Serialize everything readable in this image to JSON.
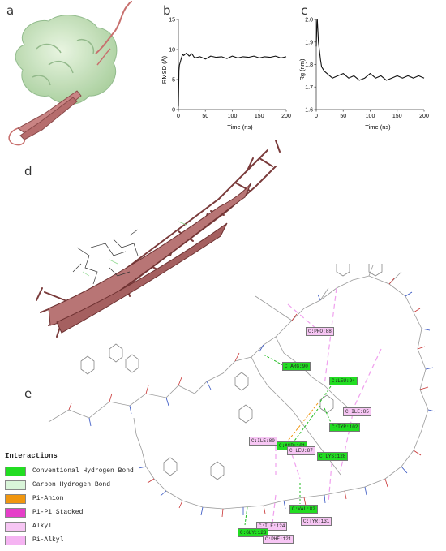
{
  "panels": {
    "a": {
      "letter": "a"
    },
    "b": {
      "letter": "b"
    },
    "c": {
      "letter": "c"
    },
    "d": {
      "letter": "d"
    },
    "e": {
      "letter": "e"
    }
  },
  "chart_data": [
    {
      "type": "line",
      "panel": "b",
      "title": "",
      "xlabel": "Time (ns)",
      "ylabel": "RMSD (Å)",
      "xlim": [
        0,
        200
      ],
      "ylim": [
        0,
        15
      ],
      "xticks": [
        "0",
        "50",
        "100",
        "150",
        "200"
      ],
      "yticks": [
        "0",
        "5",
        "10",
        "15"
      ],
      "series": [
        {
          "x": [
            0,
            1,
            2,
            4,
            6,
            8,
            10,
            15,
            20,
            25,
            30,
            40,
            50,
            60,
            70,
            80,
            90,
            100,
            110,
            120,
            130,
            140,
            150,
            160,
            170,
            180,
            190,
            200
          ],
          "y": [
            0.5,
            6.5,
            7.4,
            8.1,
            8.7,
            9.2,
            9.0,
            9.4,
            8.9,
            9.3,
            8.6,
            8.8,
            8.4,
            8.9,
            8.7,
            8.8,
            8.5,
            8.9,
            8.6,
            8.8,
            8.7,
            8.9,
            8.6,
            8.8,
            8.7,
            8.9,
            8.6,
            8.8
          ]
        }
      ]
    },
    {
      "type": "line",
      "panel": "c",
      "title": "",
      "xlabel": "Time (ns)",
      "ylabel": "Rg (nm)",
      "xlim": [
        0,
        200
      ],
      "ylim": [
        1.6,
        2.0
      ],
      "xticks": [
        "0",
        "50",
        "100",
        "150",
        "200"
      ],
      "yticks": [
        "1.6",
        "1.7",
        "1.8",
        "1.9",
        "2.0"
      ],
      "series": [
        {
          "x": [
            0,
            1,
            2,
            3,
            4,
            6,
            8,
            10,
            15,
            20,
            25,
            30,
            40,
            50,
            60,
            70,
            80,
            90,
            100,
            110,
            120,
            130,
            140,
            150,
            160,
            170,
            180,
            190,
            200
          ],
          "y": [
            1.88,
            1.97,
            2.0,
            1.95,
            1.9,
            1.86,
            1.82,
            1.79,
            1.77,
            1.76,
            1.75,
            1.74,
            1.75,
            1.76,
            1.74,
            1.75,
            1.73,
            1.74,
            1.76,
            1.74,
            1.75,
            1.73,
            1.74,
            1.75,
            1.74,
            1.75,
            1.74,
            1.75,
            1.74
          ]
        }
      ]
    }
  ],
  "residues": [
    {
      "label": "C:PRO:88",
      "type": "alkyl"
    },
    {
      "label": "C:ARG:90",
      "type": "conventional"
    },
    {
      "label": "C:LEU:94",
      "type": "conventional"
    },
    {
      "label": "C:ILE:85",
      "type": "alkyl"
    },
    {
      "label": "C:TYR:102",
      "type": "conventional"
    },
    {
      "label": "C:ILE:80",
      "type": "alkyl"
    },
    {
      "label": "C:ASP:101",
      "type": "conventional"
    },
    {
      "label": "C:LEU:87",
      "type": "alkyl"
    },
    {
      "label": "C:LYS:128",
      "type": "conventional"
    },
    {
      "label": "C:VAL:82",
      "type": "conventional"
    },
    {
      "label": "C:ILE:124",
      "type": "alkyl"
    },
    {
      "label": "C:TYR:131",
      "type": "alkyl"
    },
    {
      "label": "C:GLY:123",
      "type": "conventional"
    },
    {
      "label": "C:PHE:121",
      "type": "alkyl"
    }
  ],
  "legend": {
    "title": "Interactions",
    "items": [
      {
        "label": "Conventional Hydrogen Bond",
        "color": "#22dd22"
      },
      {
        "label": "Carbon Hydrogen Bond",
        "color": "#d9f5d9"
      },
      {
        "label": "Pi-Anion",
        "color": "#f0960f"
      },
      {
        "label": "Pi-Pi Stacked",
        "color": "#e53ec8"
      },
      {
        "label": "Alkyl",
        "color": "#f7c6f4"
      },
      {
        "label": "Pi-Alkyl",
        "color": "#f5b4f2"
      }
    ]
  }
}
